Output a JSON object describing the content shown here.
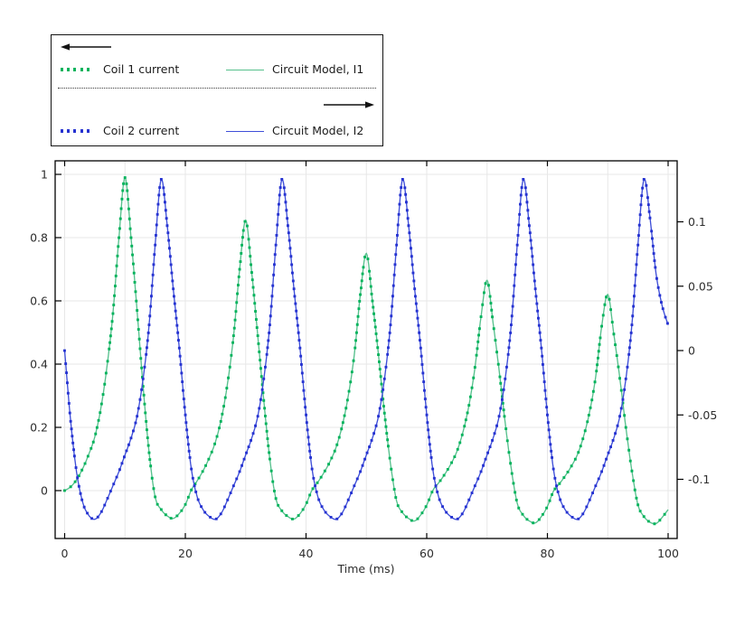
{
  "figure": {
    "background": "#ffffff",
    "border_color": "#000000",
    "grid_color": "#e7e7e7",
    "tick_text_color": "#2d2d2d"
  },
  "legend": {
    "entries": [
      {
        "label": "Coil 1 current",
        "marker": "dots",
        "color": "#00b35c"
      },
      {
        "label": "Circuit Model, I1",
        "marker": "line",
        "color": "#57c08d"
      },
      {
        "label": "Coil 2 current",
        "marker": "dots",
        "color": "#2633d1"
      },
      {
        "label": "Circuit Model, I2",
        "marker": "line",
        "color": "#3f4fd8"
      }
    ],
    "divider_style": "dotted",
    "arrows": [
      "left",
      "right"
    ]
  },
  "chart_data": {
    "type": "line",
    "title": "",
    "xlabel": "Time (ms)",
    "x_axis": {
      "tick_values": [
        0,
        20,
        40,
        60,
        80,
        100
      ],
      "tick_labels": [
        "0",
        "20",
        "40",
        "60",
        "80",
        "100"
      ],
      "minor_grid_step_ms": 10,
      "lim": [
        -1.4,
        101.5
      ]
    },
    "left_axis": {
      "tick_values": [
        0,
        0.2,
        0.4,
        0.6,
        0.8,
        1
      ],
      "tick_labels": [
        "0",
        "0.2",
        "0.4",
        "0.6",
        "0.8",
        "1"
      ],
      "lim": [
        -0.151,
        1.043
      ]
    },
    "right_axis": {
      "tick_values": [
        -0.1,
        -0.05,
        0,
        0.05,
        0.1
      ],
      "tick_labels": [
        "-0.1",
        "-0.05",
        "0",
        "0.05",
        "0.1"
      ],
      "lim": [
        -0.146,
        0.147
      ]
    },
    "grid": true,
    "legend_position": "top-left-outside",
    "sampling": {
      "t0_ms": 0,
      "dt_ms": 1,
      "n": 101
    },
    "data": {
      "coil1": [
        0,
        0.012,
        0.035,
        0.07,
        0.115,
        0.17,
        0.26,
        0.39,
        0.56,
        0.8,
        0.99,
        0.8,
        0.57,
        0.33,
        0.12,
        -0.02,
        -0.06,
        -0.08,
        -0.088,
        -0.072,
        -0.044,
        0.002,
        0.032,
        0.065,
        0.105,
        0.155,
        0.23,
        0.34,
        0.49,
        0.7,
        0.855,
        0.69,
        0.49,
        0.285,
        0.1,
        -0.025,
        -0.064,
        -0.082,
        -0.09,
        -0.073,
        -0.043,
        0.002,
        0.028,
        0.058,
        0.093,
        0.138,
        0.205,
        0.3,
        0.43,
        0.62,
        0.75,
        0.6,
        0.43,
        0.245,
        0.085,
        -0.032,
        -0.07,
        -0.088,
        -0.096,
        -0.077,
        -0.046,
        0,
        0.025,
        0.052,
        0.084,
        0.124,
        0.185,
        0.27,
        0.39,
        0.55,
        0.665,
        0.53,
        0.38,
        0.215,
        0.07,
        -0.04,
        -0.078,
        -0.096,
        -0.102,
        -0.082,
        -0.05,
        -0.002,
        0.022,
        0.048,
        0.078,
        0.115,
        0.172,
        0.25,
        0.36,
        0.52,
        0.62,
        0.495,
        0.355,
        0.2,
        0.062,
        -0.045,
        -0.082,
        -0.1,
        -0.104,
        -0.085,
        -0.06
      ],
      "coil2": [
        0,
        -0.055,
        -0.095,
        -0.118,
        -0.128,
        -0.131,
        -0.126,
        -0.116,
        -0.105,
        -0.094,
        -0.081,
        -0.068,
        -0.051,
        -0.022,
        0.02,
        0.082,
        0.133,
        0.097,
        0.048,
        0.002,
        -0.05,
        -0.092,
        -0.114,
        -0.124,
        -0.129,
        -0.131,
        -0.126,
        -0.116,
        -0.105,
        -0.094,
        -0.081,
        -0.068,
        -0.051,
        -0.022,
        0.02,
        0.082,
        0.133,
        0.097,
        0.048,
        0.002,
        -0.05,
        -0.092,
        -0.114,
        -0.124,
        -0.129,
        -0.131,
        -0.126,
        -0.116,
        -0.105,
        -0.094,
        -0.081,
        -0.068,
        -0.051,
        -0.022,
        0.02,
        0.082,
        0.133,
        0.097,
        0.048,
        0.002,
        -0.05,
        -0.092,
        -0.114,
        -0.124,
        -0.129,
        -0.131,
        -0.126,
        -0.116,
        -0.105,
        -0.094,
        -0.081,
        -0.068,
        -0.051,
        -0.022,
        0.02,
        0.082,
        0.133,
        0.097,
        0.048,
        0.002,
        -0.05,
        -0.092,
        -0.114,
        -0.124,
        -0.129,
        -0.131,
        -0.126,
        -0.116,
        -0.105,
        -0.094,
        -0.081,
        -0.068,
        -0.051,
        -0.022,
        0.02,
        0.082,
        0.133,
        0.103,
        0.06,
        0.035,
        0.02
      ]
    },
    "series": [
      {
        "name": "Coil 1 current",
        "axis": "left",
        "style": "dots",
        "color": "#00b35c",
        "data_ref": "coil1"
      },
      {
        "name": "Circuit Model, I1",
        "axis": "left",
        "style": "line",
        "color": "#57c08d",
        "data_ref": "coil1"
      },
      {
        "name": "Coil 2 current",
        "axis": "right",
        "style": "dots",
        "color": "#2633d1",
        "data_ref": "coil2"
      },
      {
        "name": "Circuit Model, I2",
        "axis": "right",
        "style": "line",
        "color": "#3f4fd8",
        "data_ref": "coil2"
      }
    ]
  }
}
